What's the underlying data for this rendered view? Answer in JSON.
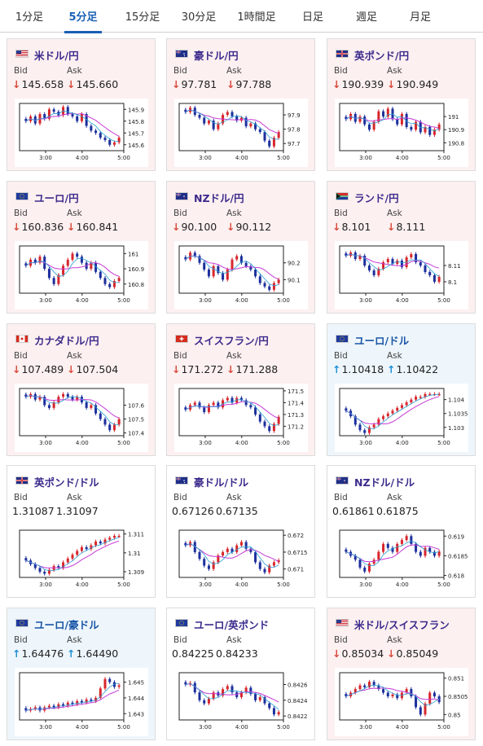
{
  "tabs": [
    {
      "label": "1分足",
      "active": false
    },
    {
      "label": "5分足",
      "active": true
    },
    {
      "label": "15分足",
      "active": false
    },
    {
      "label": "30分足",
      "active": false
    },
    {
      "label": "1時間足",
      "active": false
    },
    {
      "label": "日足",
      "active": false
    },
    {
      "label": "週足",
      "active": false
    },
    {
      "label": "月足",
      "active": false
    }
  ],
  "labels": {
    "bid": "Bid",
    "ask": "Ask"
  },
  "cards": [
    {
      "name": "米ドル/円",
      "flag": "us-flag-icon",
      "trend": "down",
      "bid": "145.658",
      "ask": "145.660",
      "chart_data": {
        "type": "candlestick",
        "x_ticks": [
          "3:00",
          "4:00",
          "5:00"
        ],
        "y_ticks": [
          "145.9",
          "145.8",
          "145.7",
          "145.6"
        ],
        "ylim": [
          145.55,
          145.95
        ],
        "close": [
          145.8,
          145.84,
          145.78,
          145.86,
          145.82,
          145.9,
          145.88,
          145.85,
          145.92,
          145.86,
          145.84,
          145.8,
          145.86,
          145.76,
          145.72,
          145.7,
          145.66,
          145.64,
          145.6,
          145.62,
          145.66
        ]
      }
    },
    {
      "name": "豪ドル/円",
      "flag": "au-flag-icon",
      "trend": "down",
      "bid": "97.781",
      "ask": "97.788",
      "chart_data": {
        "type": "candlestick",
        "x_ticks": [
          "3:00",
          "4:00",
          "5:00"
        ],
        "y_ticks": [
          "97.9",
          "97.8",
          "97.7"
        ],
        "ylim": [
          97.65,
          97.98
        ],
        "close": [
          97.92,
          97.95,
          97.9,
          97.88,
          97.84,
          97.86,
          97.8,
          97.84,
          97.9,
          97.92,
          97.89,
          97.86,
          97.88,
          97.82,
          97.84,
          97.8,
          97.78,
          97.72,
          97.68,
          97.74,
          97.78
        ]
      }
    },
    {
      "name": "英ポンド/円",
      "flag": "gb-flag-icon",
      "trend": "down",
      "bid": "190.939",
      "ask": "190.949",
      "chart_data": {
        "type": "candlestick",
        "x_ticks": [
          "3:00",
          "4:00",
          "5:00"
        ],
        "y_ticks": [
          "191",
          "190.9",
          "190.8"
        ],
        "ylim": [
          190.74,
          191.1
        ],
        "close": [
          190.98,
          191.02,
          190.96,
          191.0,
          190.94,
          190.9,
          190.96,
          191.04,
          191.0,
          191.06,
          190.98,
          190.94,
          191.02,
          190.92,
          190.9,
          190.96,
          190.88,
          190.92,
          190.86,
          190.9,
          190.94
        ]
      }
    },
    {
      "name": "ユーロ/円",
      "flag": "eu-flag-icon",
      "trend": "down",
      "bid": "160.836",
      "ask": "160.841",
      "chart_data": {
        "type": "candlestick",
        "x_ticks": [
          "3:00",
          "4:00",
          "5:00"
        ],
        "y_ticks": [
          "161",
          "160.9",
          "160.8"
        ],
        "ylim": [
          160.74,
          161.05
        ],
        "close": [
          160.92,
          160.96,
          160.94,
          160.98,
          160.9,
          160.84,
          160.8,
          160.86,
          160.92,
          160.96,
          161.0,
          160.98,
          160.94,
          160.9,
          160.94,
          160.88,
          160.84,
          160.8,
          160.78,
          160.82,
          160.84
        ]
      }
    },
    {
      "name": "NZドル/円",
      "flag": "nz-flag-icon",
      "trend": "down",
      "bid": "90.100",
      "ask": "90.112",
      "chart_data": {
        "type": "candlestick",
        "x_ticks": [
          "3:00",
          "4:00",
          "5:00"
        ],
        "y_ticks": [
          "90.2",
          "90.1"
        ],
        "ylim": [
          90.02,
          90.3
        ],
        "close": [
          90.22,
          90.26,
          90.24,
          90.2,
          90.16,
          90.12,
          90.18,
          90.14,
          90.1,
          90.16,
          90.22,
          90.24,
          90.2,
          90.18,
          90.16,
          90.12,
          90.08,
          90.06,
          90.04,
          90.08,
          90.1
        ]
      }
    },
    {
      "name": "ランド/円",
      "flag": "za-flag-icon",
      "trend": "down",
      "bid": "8.101",
      "ask": "8.111",
      "chart_data": {
        "type": "candlestick",
        "x_ticks": [
          "3:00",
          "4:00",
          "5:00"
        ],
        "y_ticks": [
          "8.11",
          "8.1"
        ],
        "ylim": [
          8.093,
          8.122
        ],
        "close": [
          8.116,
          8.118,
          8.114,
          8.116,
          8.11,
          8.107,
          8.104,
          8.108,
          8.112,
          8.114,
          8.111,
          8.113,
          8.109,
          8.115,
          8.117,
          8.112,
          8.11,
          8.106,
          8.104,
          8.1,
          8.103
        ]
      }
    },
    {
      "name": "カナダドル/円",
      "flag": "ca-flag-icon",
      "trend": "down",
      "bid": "107.489",
      "ask": "107.504",
      "chart_data": {
        "type": "candlestick",
        "x_ticks": [
          "3:00",
          "4:00",
          "5:00"
        ],
        "y_ticks": [
          "107.6",
          "107.5",
          "107.4"
        ],
        "ylim": [
          107.38,
          107.72
        ],
        "close": [
          107.66,
          107.68,
          107.64,
          107.66,
          107.6,
          107.58,
          107.62,
          107.66,
          107.68,
          107.66,
          107.64,
          107.66,
          107.62,
          107.58,
          107.6,
          107.54,
          107.5,
          107.46,
          107.42,
          107.46,
          107.5
        ]
      }
    },
    {
      "name": "スイスフラン/円",
      "flag": "ch-flag-icon",
      "trend": "down",
      "bid": "171.272",
      "ask": "171.288",
      "chart_data": {
        "type": "candlestick",
        "x_ticks": [
          "3:00",
          "4:00",
          "5:00"
        ],
        "y_ticks": [
          "171.5",
          "171.4",
          "171.3",
          "171.2"
        ],
        "ylim": [
          171.12,
          171.52
        ],
        "close": [
          171.34,
          171.38,
          171.4,
          171.36,
          171.32,
          171.38,
          171.4,
          171.36,
          171.42,
          171.44,
          171.4,
          171.44,
          171.42,
          171.38,
          171.36,
          171.3,
          171.24,
          171.2,
          171.16,
          171.22,
          171.28
        ]
      }
    },
    {
      "name": "ユーロ/ドル",
      "flag": "eu-flag-icon",
      "trend": "up",
      "bid": "1.10418",
      "ask": "1.10422",
      "chart_data": {
        "type": "candlestick",
        "x_ticks": [
          "3:00",
          "4:00",
          "5:00"
        ],
        "y_ticks": [
          "1.104",
          "1.1035",
          "1.103"
        ],
        "ylim": [
          1.1027,
          1.1044
        ],
        "close": [
          1.1036,
          1.1034,
          1.1031,
          1.1029,
          1.1028,
          1.103,
          1.1031,
          1.1033,
          1.1034,
          1.1035,
          1.1036,
          1.1037,
          1.1038,
          1.1039,
          1.104,
          1.1041,
          1.1041,
          1.1042,
          1.1042,
          1.1042,
          1.1042
        ]
      }
    },
    {
      "name": "英ポンド/ドル",
      "flag": "gb-flag-icon",
      "trend": "flat",
      "bid": "1.31087",
      "ask": "1.31097",
      "chart_data": {
        "type": "candlestick",
        "x_ticks": [
          "3:00",
          "4:00",
          "5:00"
        ],
        "y_ticks": [
          "1.311",
          "1.31",
          "1.309"
        ],
        "ylim": [
          1.3087,
          1.3112
        ],
        "close": [
          1.3096,
          1.3094,
          1.3092,
          1.309,
          1.3089,
          1.3091,
          1.3093,
          1.3092,
          1.3095,
          1.3097,
          1.3099,
          1.3101,
          1.3103,
          1.3102,
          1.3104,
          1.3106,
          1.3105,
          1.3107,
          1.3108,
          1.3109,
          1.3109
        ]
      }
    },
    {
      "name": "豪ドル/ドル",
      "flag": "au-flag-icon",
      "trend": "flat",
      "bid": "0.67126",
      "ask": "0.67135",
      "chart_data": {
        "type": "candlestick",
        "x_ticks": [
          "3:00",
          "4:00",
          "5:00"
        ],
        "y_ticks": [
          "0.672",
          "0.6715",
          "0.671"
        ],
        "ylim": [
          0.67075,
          0.67215
        ],
        "close": [
          0.6717,
          0.6718,
          0.6715,
          0.6713,
          0.6711,
          0.671,
          0.6712,
          0.6714,
          0.6715,
          0.6716,
          0.6715,
          0.6717,
          0.6718,
          0.6716,
          0.6715,
          0.6712,
          0.671,
          0.6709,
          0.6711,
          0.6712,
          0.67126
        ]
      }
    },
    {
      "name": "NZドル/ドル",
      "flag": "nz-flag-icon",
      "trend": "flat",
      "bid": "0.61861",
      "ask": "0.61875",
      "chart_data": {
        "type": "candlestick",
        "x_ticks": [
          "3:00",
          "4:00",
          "5:00"
        ],
        "y_ticks": [
          "0.619",
          "0.6185",
          "0.618"
        ],
        "ylim": [
          0.61795,
          0.61915
        ],
        "close": [
          0.6186,
          0.6185,
          0.6184,
          0.6182,
          0.6181,
          0.6183,
          0.6184,
          0.6186,
          0.6188,
          0.6187,
          0.6186,
          0.6188,
          0.6189,
          0.619,
          0.6188,
          0.6186,
          0.6185,
          0.6187,
          0.6186,
          0.6185,
          0.61861
        ]
      }
    },
    {
      "name": "ユーロ/豪ドル",
      "flag": "eu-flag-icon",
      "trend": "up",
      "bid": "1.64476",
      "ask": "1.64490",
      "chart_data": {
        "type": "candlestick",
        "x_ticks": [
          "3:00",
          "4:00",
          "5:00"
        ],
        "y_ticks": [
          "1.645",
          "1.644",
          "1.643"
        ],
        "ylim": [
          1.6426,
          1.6456
        ],
        "close": [
          1.6432,
          1.6433,
          1.6434,
          1.6432,
          1.6434,
          1.6435,
          1.6434,
          1.6436,
          1.6435,
          1.6437,
          1.6436,
          1.6438,
          1.6437,
          1.6439,
          1.6438,
          1.644,
          1.6446,
          1.6452,
          1.645,
          1.6447,
          1.6448
        ]
      }
    },
    {
      "name": "ユーロ/英ポンド",
      "flag": "eu-flag-icon",
      "trend": "flat",
      "bid": "0.84225",
      "ask": "0.84233",
      "chart_data": {
        "type": "candlestick",
        "x_ticks": [
          "3:00",
          "4:00",
          "5:00"
        ],
        "y_ticks": [
          "0.8426",
          "0.8424",
          "0.8422"
        ],
        "ylim": [
          0.84215,
          0.84275
        ],
        "close": [
          0.8426,
          0.84262,
          0.8425,
          0.8424,
          0.84236,
          0.84242,
          0.8425,
          0.84246,
          0.84254,
          0.84258,
          0.8425,
          0.84244,
          0.8425,
          0.84256,
          0.84248,
          0.8424,
          0.84244,
          0.84236,
          0.8423,
          0.84222,
          0.84225
        ]
      }
    },
    {
      "name": "米ドル/スイスフラン",
      "flag": "us-flag-icon",
      "trend": "down",
      "bid": "0.85034",
      "ask": "0.85049",
      "chart_data": {
        "type": "candlestick",
        "x_ticks": [
          "3:00",
          "4:00",
          "5:00"
        ],
        "y_ticks": [
          "0.851",
          "0.8505",
          "0.85"
        ],
        "ylim": [
          0.84985,
          0.85115
        ],
        "close": [
          0.8505,
          0.8506,
          0.8507,
          0.8508,
          0.85075,
          0.8509,
          0.8508,
          0.8507,
          0.8506,
          0.8505,
          0.85055,
          0.85045,
          0.8506,
          0.8507,
          0.8505,
          0.8502,
          0.85,
          0.8503,
          0.8506,
          0.8505,
          0.85034
        ]
      }
    }
  ],
  "colors": {
    "candle_up": "#d7262c",
    "candle_down": "#1c2f9c",
    "ma_line": "#c73bd6",
    "ma_line2": "#2a9fd6"
  }
}
